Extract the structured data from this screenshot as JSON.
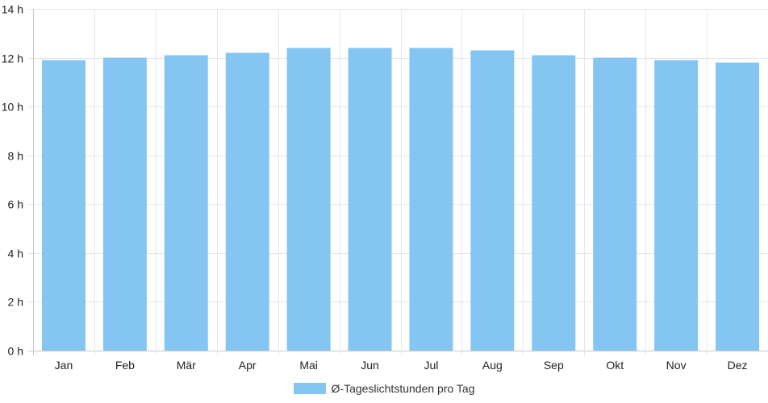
{
  "chart_data": {
    "type": "bar",
    "categories": [
      "Jan",
      "Feb",
      "Mär",
      "Apr",
      "Mai",
      "Jun",
      "Jul",
      "Aug",
      "Sep",
      "Okt",
      "Nov",
      "Dez"
    ],
    "series": [
      {
        "name": "Ø-Tageslichtstunden pro Tag",
        "values": [
          11.9,
          12.0,
          12.1,
          12.2,
          12.4,
          12.4,
          12.4,
          12.3,
          12.1,
          12.0,
          11.9,
          11.8
        ]
      }
    ],
    "y_ticks": [
      "0 h",
      "2 h",
      "4 h",
      "6 h",
      "8 h",
      "10 h",
      "12 h",
      "14 h"
    ],
    "ylim": [
      0,
      14
    ],
    "y_step": 2,
    "title": "",
    "xlabel": "",
    "ylabel": "",
    "grid": true,
    "legend_position": "bottom-center",
    "colors": {
      "bar": "#85c5f2",
      "grid": "#e6e6e6",
      "axis": "#c8c8c8"
    }
  }
}
